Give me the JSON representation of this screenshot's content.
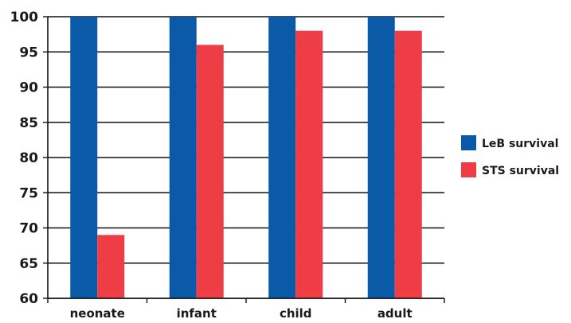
{
  "chart_data": {
    "type": "bar",
    "title": "",
    "xlabel": "",
    "ylabel": "",
    "categories": [
      "neonate",
      "infant",
      "child",
      "adult"
    ],
    "series": [
      {
        "name": "LeB survival",
        "color": "#0b5aa8",
        "values": [
          100,
          100,
          100,
          100
        ]
      },
      {
        "name": "STS survival",
        "color": "#ee3d45",
        "values": [
          69,
          96,
          98,
          98
        ]
      }
    ],
    "ylim": [
      60,
      100
    ],
    "yticks": [
      60,
      65,
      70,
      75,
      80,
      85,
      90,
      95,
      100
    ],
    "grid": true,
    "legend_position": "right"
  }
}
